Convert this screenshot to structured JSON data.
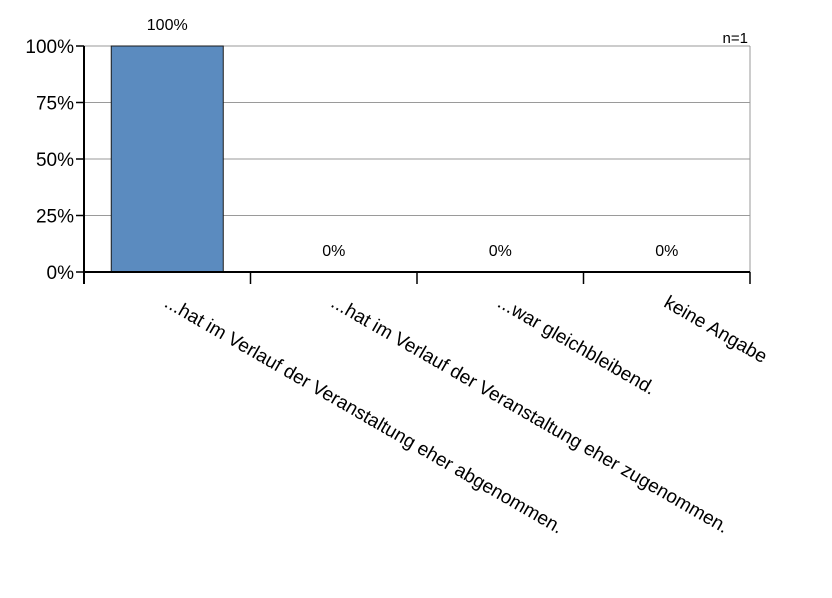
{
  "chart_data": {
    "type": "bar",
    "categories": [
      "...hat im Verlauf der Veranstaltung eher abgenommen.",
      "...hat im Verlauf der Veranstaltung eher zugenommen.",
      "...war gleichbleibend.",
      "keine Angabe"
    ],
    "values": [
      100,
      0,
      0,
      0
    ],
    "data_labels": [
      "100%",
      "0%",
      "0%",
      "0%"
    ],
    "ylim": [
      0,
      100
    ],
    "yticks": [
      0,
      25,
      50,
      75,
      100
    ],
    "ytick_labels": [
      "0%",
      "25%",
      "50%",
      "75%",
      "100%"
    ],
    "annotation": "n=1",
    "grid": true,
    "bar_color": "#5b8bbf",
    "bar_stroke": "#1a1a1a",
    "title": "",
    "xlabel": "",
    "ylabel": ""
  }
}
